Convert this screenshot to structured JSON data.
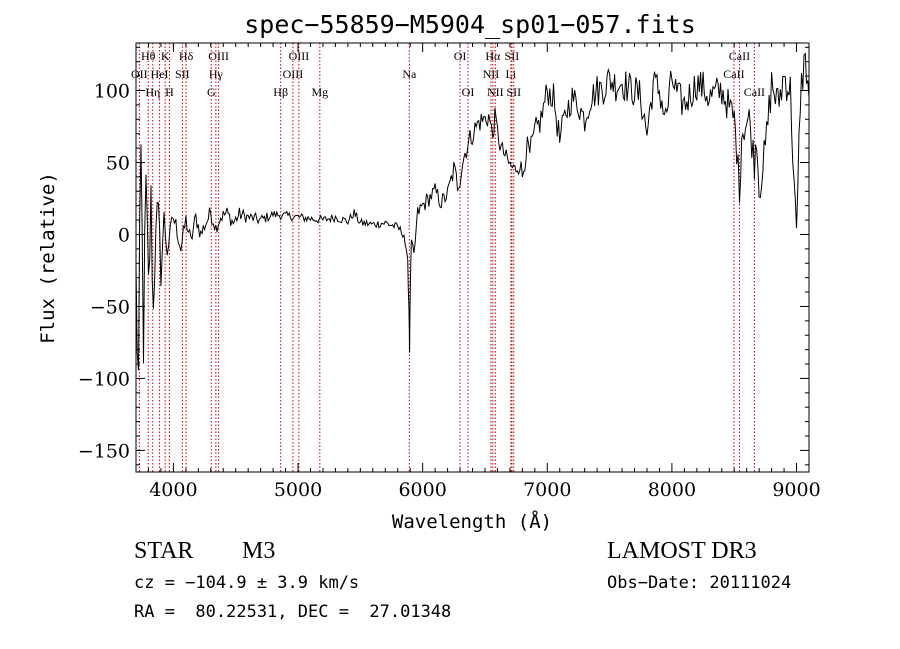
{
  "chart_data": {
    "type": "line",
    "title": "spec−55859−M5904_sp01−057.fits",
    "xlabel": "Wavelength (Å)",
    "ylabel": "Flux (relative)",
    "xlim": [
      3700,
      9100
    ],
    "ylim": [
      -165,
      133
    ],
    "x_ticks": [
      4000,
      5000,
      6000,
      7000,
      8000,
      9000
    ],
    "y_ticks": [
      -150,
      -100,
      -50,
      0,
      50,
      100
    ],
    "y_tick_labels": [
      "−150",
      "−100",
      "−50",
      "0",
      "50",
      "100"
    ],
    "line_color": "#000000",
    "marker_color": "#cc0000",
    "series": [
      {
        "name": "flux",
        "x": [
          3700,
          3720,
          3740,
          3760,
          3780,
          3800,
          3820,
          3840,
          3860,
          3880,
          3900,
          3925,
          3950,
          3975,
          4000,
          4030,
          4060,
          4100,
          4140,
          4180,
          4220,
          4260,
          4300,
          4340,
          4380,
          4430,
          4480,
          4530,
          4600,
          4700,
          4800,
          4900,
          5000,
          5100,
          5200,
          5300,
          5400,
          5450,
          5500,
          5600,
          5700,
          5800,
          5850,
          5880,
          5890,
          5895,
          5900,
          5910,
          5930,
          5960,
          6000,
          6050,
          6100,
          6150,
          6200,
          6250,
          6280,
          6300,
          6320,
          6350,
          6400,
          6450,
          6500,
          6530,
          6563,
          6580,
          6620,
          6660,
          6700,
          6740,
          6780,
          6800,
          6830,
          6860,
          6900,
          6950,
          7000,
          7050,
          7100,
          7150,
          7200,
          7250,
          7300,
          7350,
          7400,
          7450,
          7500,
          7550,
          7600,
          7650,
          7700,
          7750,
          7800,
          7850,
          7900,
          7950,
          8000,
          8050,
          8100,
          8150,
          8200,
          8250,
          8300,
          8350,
          8400,
          8450,
          8500,
          8520,
          8542,
          8560,
          8580,
          8620,
          8662,
          8680,
          8700,
          8750,
          8800,
          8850,
          8900,
          8950,
          9000,
          9030,
          9060,
          9080,
          9100
        ],
        "y": [
          -30,
          -105,
          50,
          -70,
          30,
          -40,
          20,
          -55,
          15,
          10,
          -25,
          10,
          -10,
          0,
          12,
          3,
          -10,
          10,
          -5,
          12,
          0,
          8,
          15,
          5,
          12,
          15,
          8,
          14,
          12,
          10,
          14,
          13,
          12,
          11,
          10,
          12,
          9,
          15,
          8,
          7,
          8,
          5,
          0,
          -20,
          -50,
          -80,
          -40,
          -5,
          -15,
          15,
          20,
          25,
          30,
          22,
          28,
          45,
          35,
          40,
          50,
          60,
          70,
          78,
          80,
          82,
          68,
          82,
          62,
          55,
          48,
          45,
          50,
          40,
          60,
          55,
          70,
          80,
          100,
          95,
          65,
          85,
          95,
          90,
          80,
          95,
          100,
          102,
          108,
          104,
          106,
          102,
          100,
          95,
          70,
          105,
          100,
          80,
          108,
          95,
          90,
          98,
          105,
          102,
          95,
          98,
          100,
          90,
          80,
          60,
          30,
          70,
          75,
          80,
          50,
          70,
          30,
          60,
          105,
          90,
          110,
          100,
          -5,
          95,
          120,
          115,
          95
        ],
        "jitter": [
          35,
          40,
          35,
          30,
          28,
          26,
          24,
          22,
          18,
          16,
          14,
          12,
          10,
          8,
          8,
          7,
          6,
          6,
          6,
          6,
          6,
          6,
          6,
          5,
          5,
          5,
          5,
          5,
          4,
          4,
          3,
          3,
          3,
          3,
          3,
          3,
          3,
          3,
          3,
          3,
          3,
          3,
          3,
          3,
          3,
          3,
          3,
          3,
          4,
          5,
          6,
          6,
          6,
          6,
          6,
          8,
          8,
          8,
          8,
          8,
          8,
          8,
          8,
          8,
          6,
          6,
          6,
          6,
          6,
          6,
          8,
          8,
          10,
          10,
          10,
          10,
          10,
          10,
          10,
          10,
          10,
          10,
          10,
          10,
          12,
          12,
          12,
          12,
          12,
          12,
          12,
          12,
          12,
          12,
          12,
          12,
          12,
          12,
          12,
          12,
          12,
          12,
          12,
          12,
          12,
          12,
          12,
          12,
          12,
          12,
          12,
          12,
          12,
          12,
          12,
          12,
          14,
          14,
          14,
          14,
          14,
          14,
          14,
          14,
          14
        ]
      }
    ],
    "spectral_lines": [
      {
        "label": "Hθ",
        "x": 3798,
        "row": 1
      },
      {
        "label": "OII",
        "x": 3727,
        "row": 2
      },
      {
        "label": "Hη",
        "x": 3835,
        "row": 3
      },
      {
        "label": "K",
        "x": 3934,
        "row": 1
      },
      {
        "label": "HeI",
        "x": 3889,
        "row": 2
      },
      {
        "label": "H",
        "x": 3968,
        "row": 3
      },
      {
        "label": "Hδ",
        "x": 4102,
        "row": 1
      },
      {
        "label": "SII",
        "x": 4072,
        "row": 2
      },
      {
        "label": "OIII",
        "x": 4363,
        "row": 1
      },
      {
        "label": "Hγ",
        "x": 4341,
        "row": 2
      },
      {
        "label": "G",
        "x": 4304,
        "row": 3
      },
      {
        "label": "Hβ",
        "x": 4861,
        "row": 3
      },
      {
        "label": "OIII",
        "x": 5007,
        "row": 1
      },
      {
        "label": "OIII",
        "x": 4959,
        "row": 2
      },
      {
        "label": "Mg",
        "x": 5175,
        "row": 3
      },
      {
        "label": "Na",
        "x": 5893,
        "row": 2
      },
      {
        "label": "OI",
        "x": 6300,
        "row": 1
      },
      {
        "label": "OI",
        "x": 6364,
        "row": 3
      },
      {
        "label": "Hα",
        "x": 6563,
        "row": 1
      },
      {
        "label": "NII",
        "x": 6548,
        "row": 2
      },
      {
        "label": "NII",
        "x": 6583,
        "row": 3
      },
      {
        "label": "SII",
        "x": 6716,
        "row": 1
      },
      {
        "label": "Li",
        "x": 6708,
        "row": 2
      },
      {
        "label": "SII",
        "x": 6731,
        "row": 3
      },
      {
        "label": "CaII",
        "x": 8542,
        "row": 1
      },
      {
        "label": "CaII",
        "x": 8498,
        "row": 2
      },
      {
        "label": "CaII",
        "x": 8662,
        "row": 3
      }
    ]
  },
  "info": {
    "object_class": "STAR",
    "subclass": "M3",
    "survey": "LAMOST DR3",
    "redshift": "cz = −104.9 ± 3.9 km/s",
    "obs_date": "Obs−Date: 20111024",
    "coords": "RA =  80.22531, DEC =  27.01348"
  }
}
